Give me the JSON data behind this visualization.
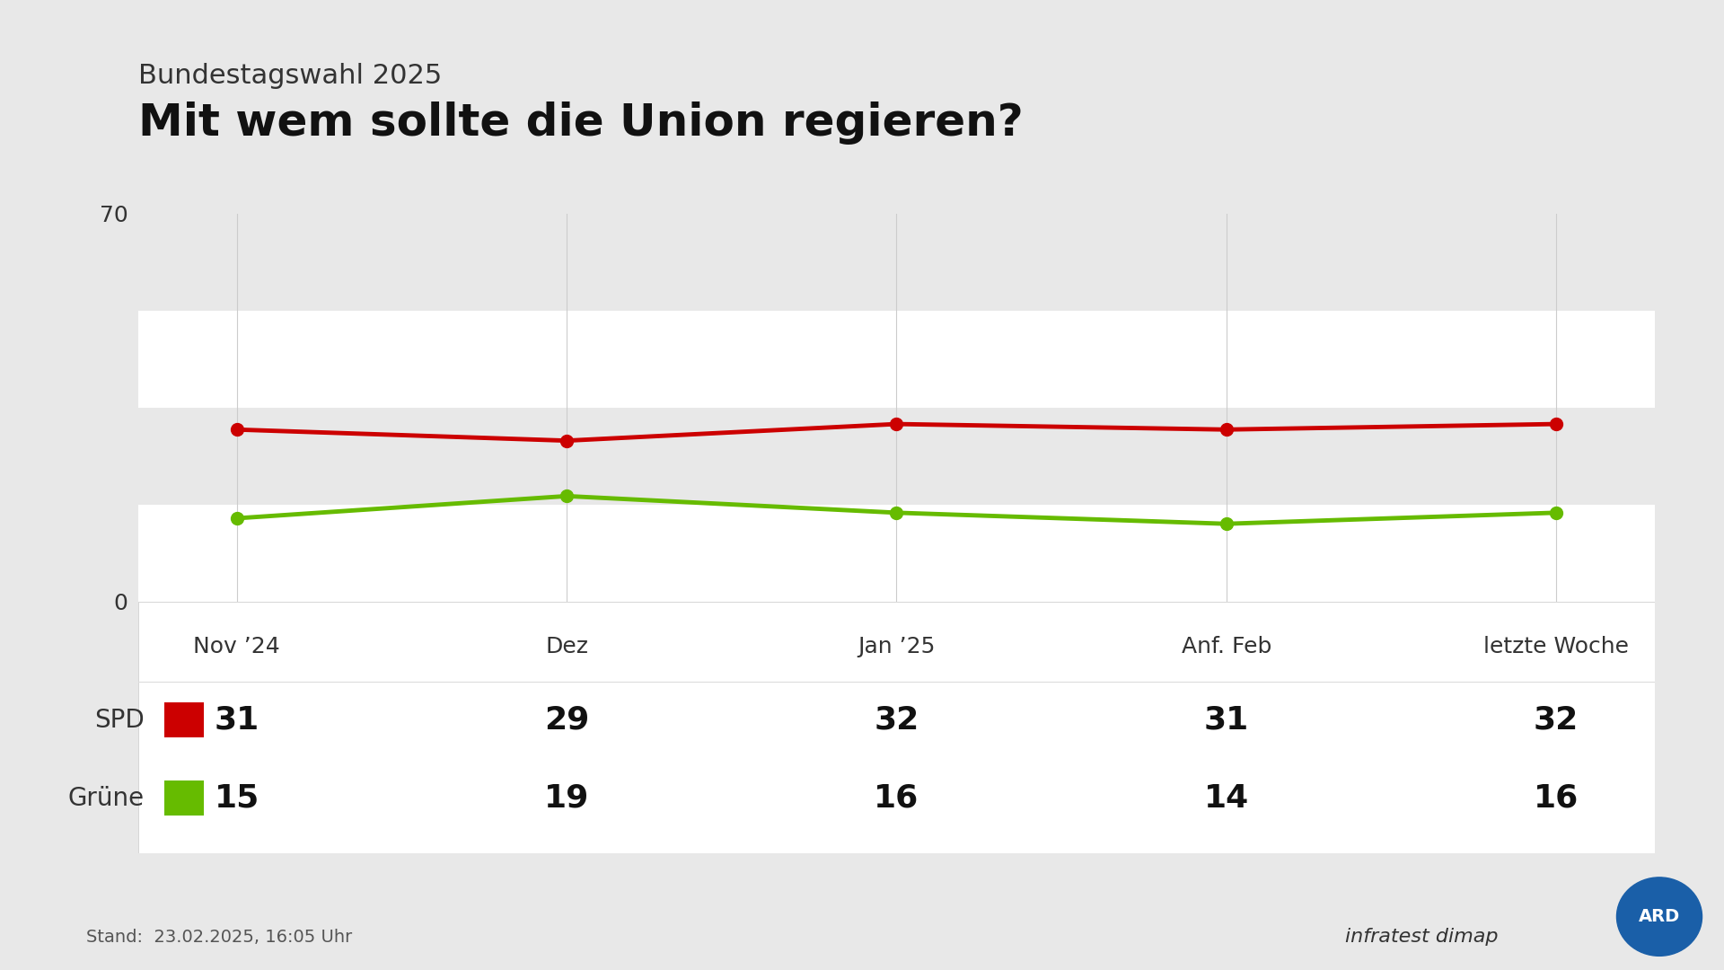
{
  "supertitle": "Bundestagswahl 2025",
  "title": "Mit wem sollte die Union regieren?",
  "background_color": "#e8e8e8",
  "plot_bg_color": "#e8e8e8",
  "band_colors": [
    "#ffffff",
    "#e8e8e8"
  ],
  "x_labels": [
    "Nov ’24",
    "Dez",
    "Jan ’25",
    "Anf. Feb",
    "letzte Woche"
  ],
  "x_values": [
    0,
    1,
    2,
    3,
    4
  ],
  "spd_values": [
    31,
    29,
    32,
    31,
    32
  ],
  "grune_values": [
    15,
    19,
    16,
    14,
    16
  ],
  "spd_color": "#cc0000",
  "grune_color": "#66bb00",
  "ylim": [
    0,
    70
  ],
  "yticks": [
    0,
    70
  ],
  "line_width": 3.5,
  "marker_size": 10,
  "footer_text": "Stand:  23.02.2025, 16:05 Uhr",
  "supertitle_fontsize": 22,
  "title_fontsize": 36,
  "table_header_fontsize": 18,
  "table_value_fontsize": 26,
  "table_label_fontsize": 20
}
